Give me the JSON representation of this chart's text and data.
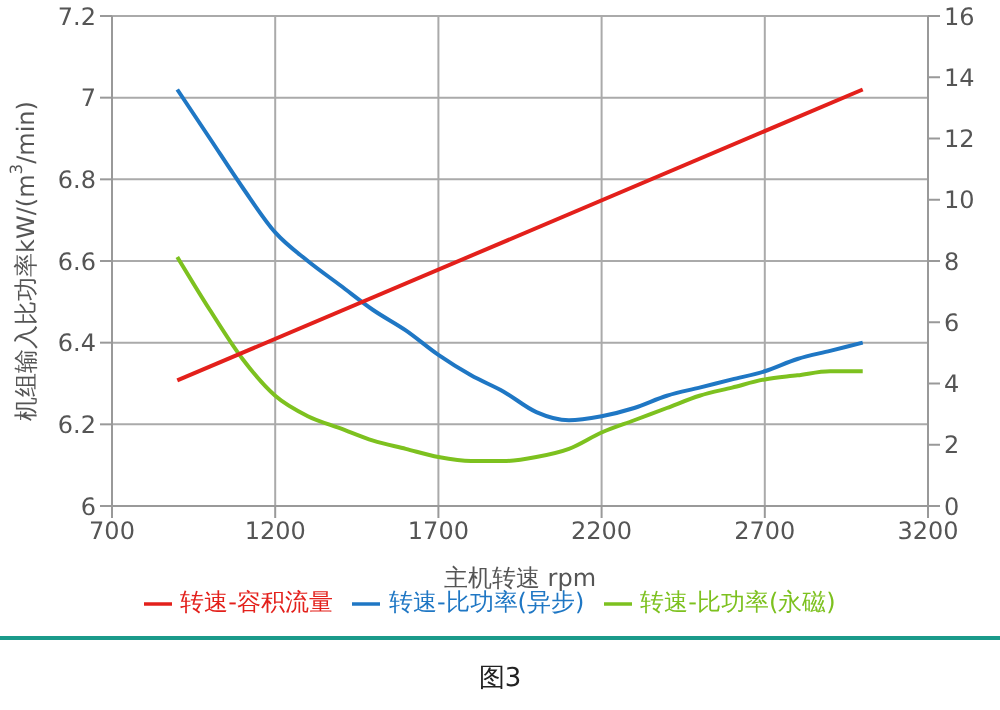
{
  "chart_data": {
    "type": "line",
    "xlabel": "主机转速 rpm",
    "ylabel": "机组输入比功率kW/(m$^{3}$/min)",
    "x": [
      900,
      1000,
      1100,
      1200,
      1300,
      1400,
      1500,
      1600,
      1700,
      1800,
      1900,
      2000,
      2100,
      2200,
      2300,
      2400,
      2500,
      2600,
      2700,
      2800,
      2900,
      3000
    ],
    "series": [
      {
        "name": "转速-比功率(异步)",
        "color": "#1f77c4",
        "values": [
          7.02,
          6.9,
          6.78,
          6.67,
          6.6,
          6.54,
          6.48,
          6.43,
          6.37,
          6.32,
          6.28,
          6.23,
          6.21,
          6.22,
          6.24,
          6.27,
          6.29,
          6.31,
          6.33,
          6.36,
          6.38,
          6.4
        ]
      },
      {
        "name": "转速-比功率(永磁)",
        "color": "#7dc11f",
        "values": [
          6.61,
          6.48,
          6.36,
          6.27,
          6.22,
          6.19,
          6.16,
          6.14,
          6.12,
          6.11,
          6.11,
          6.12,
          6.14,
          6.18,
          6.21,
          6.24,
          6.27,
          6.29,
          6.31,
          6.32,
          6.33,
          6.33
        ]
      },
      {
        "name": "转速-容积流量",
        "color": "#e3201b",
        "axis": "y2",
        "x": [
          900,
          3000
        ],
        "values": [
          4.1,
          13.6
        ]
      }
    ],
    "xlim": [
      700,
      3200
    ],
    "xticks": [
      700,
      1200,
      1700,
      2200,
      2700,
      3200
    ],
    "ylim": [
      6,
      7.2
    ],
    "yticks": [
      6,
      6.2,
      6.4,
      6.6,
      6.8,
      7,
      7.2
    ],
    "y2lim": [
      0,
      16
    ],
    "y2ticks": [
      0,
      2,
      4,
      6,
      8,
      10,
      12,
      14,
      16
    ],
    "grid": true,
    "legend": "bottom",
    "marker": "none",
    "line_style": "solid",
    "annotations": [
      "图3"
    ]
  }
}
